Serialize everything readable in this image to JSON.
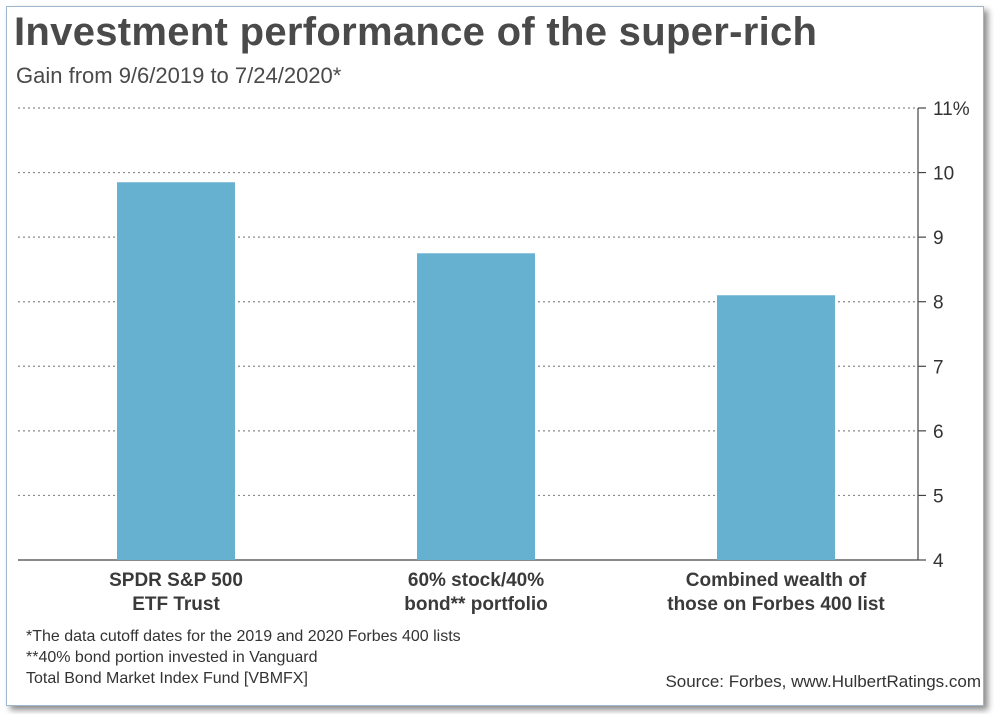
{
  "chart_data": {
    "type": "bar",
    "title": "Investment performance of the super-rich",
    "subtitle": "Gain from 9/6/2019 to 7/24/2020*",
    "categories": [
      [
        "SPDR S&P 500",
        "ETF Trust"
      ],
      [
        "60% stock/40%",
        "bond** portfolio"
      ],
      [
        "Combined wealth of",
        "those on Forbes 400 list"
      ]
    ],
    "values": [
      9.85,
      8.75,
      8.1
    ],
    "ylim": [
      4,
      11
    ],
    "yticks": [
      "4",
      "5",
      "6",
      "7",
      "8",
      "9",
      "10",
      "11%"
    ],
    "grid": true,
    "bar_color": "#66b0d0",
    "xlabel": "",
    "ylabel": ""
  },
  "footnotes": [
    "*The data cutoff dates for the 2019 and 2020 Forbes 400 lists",
    "**40% bond portion invested in Vanguard",
    "Total Bond Market Index Fund [VBMFX]"
  ],
  "source": "Source: Forbes, www.HulbertRatings.com"
}
